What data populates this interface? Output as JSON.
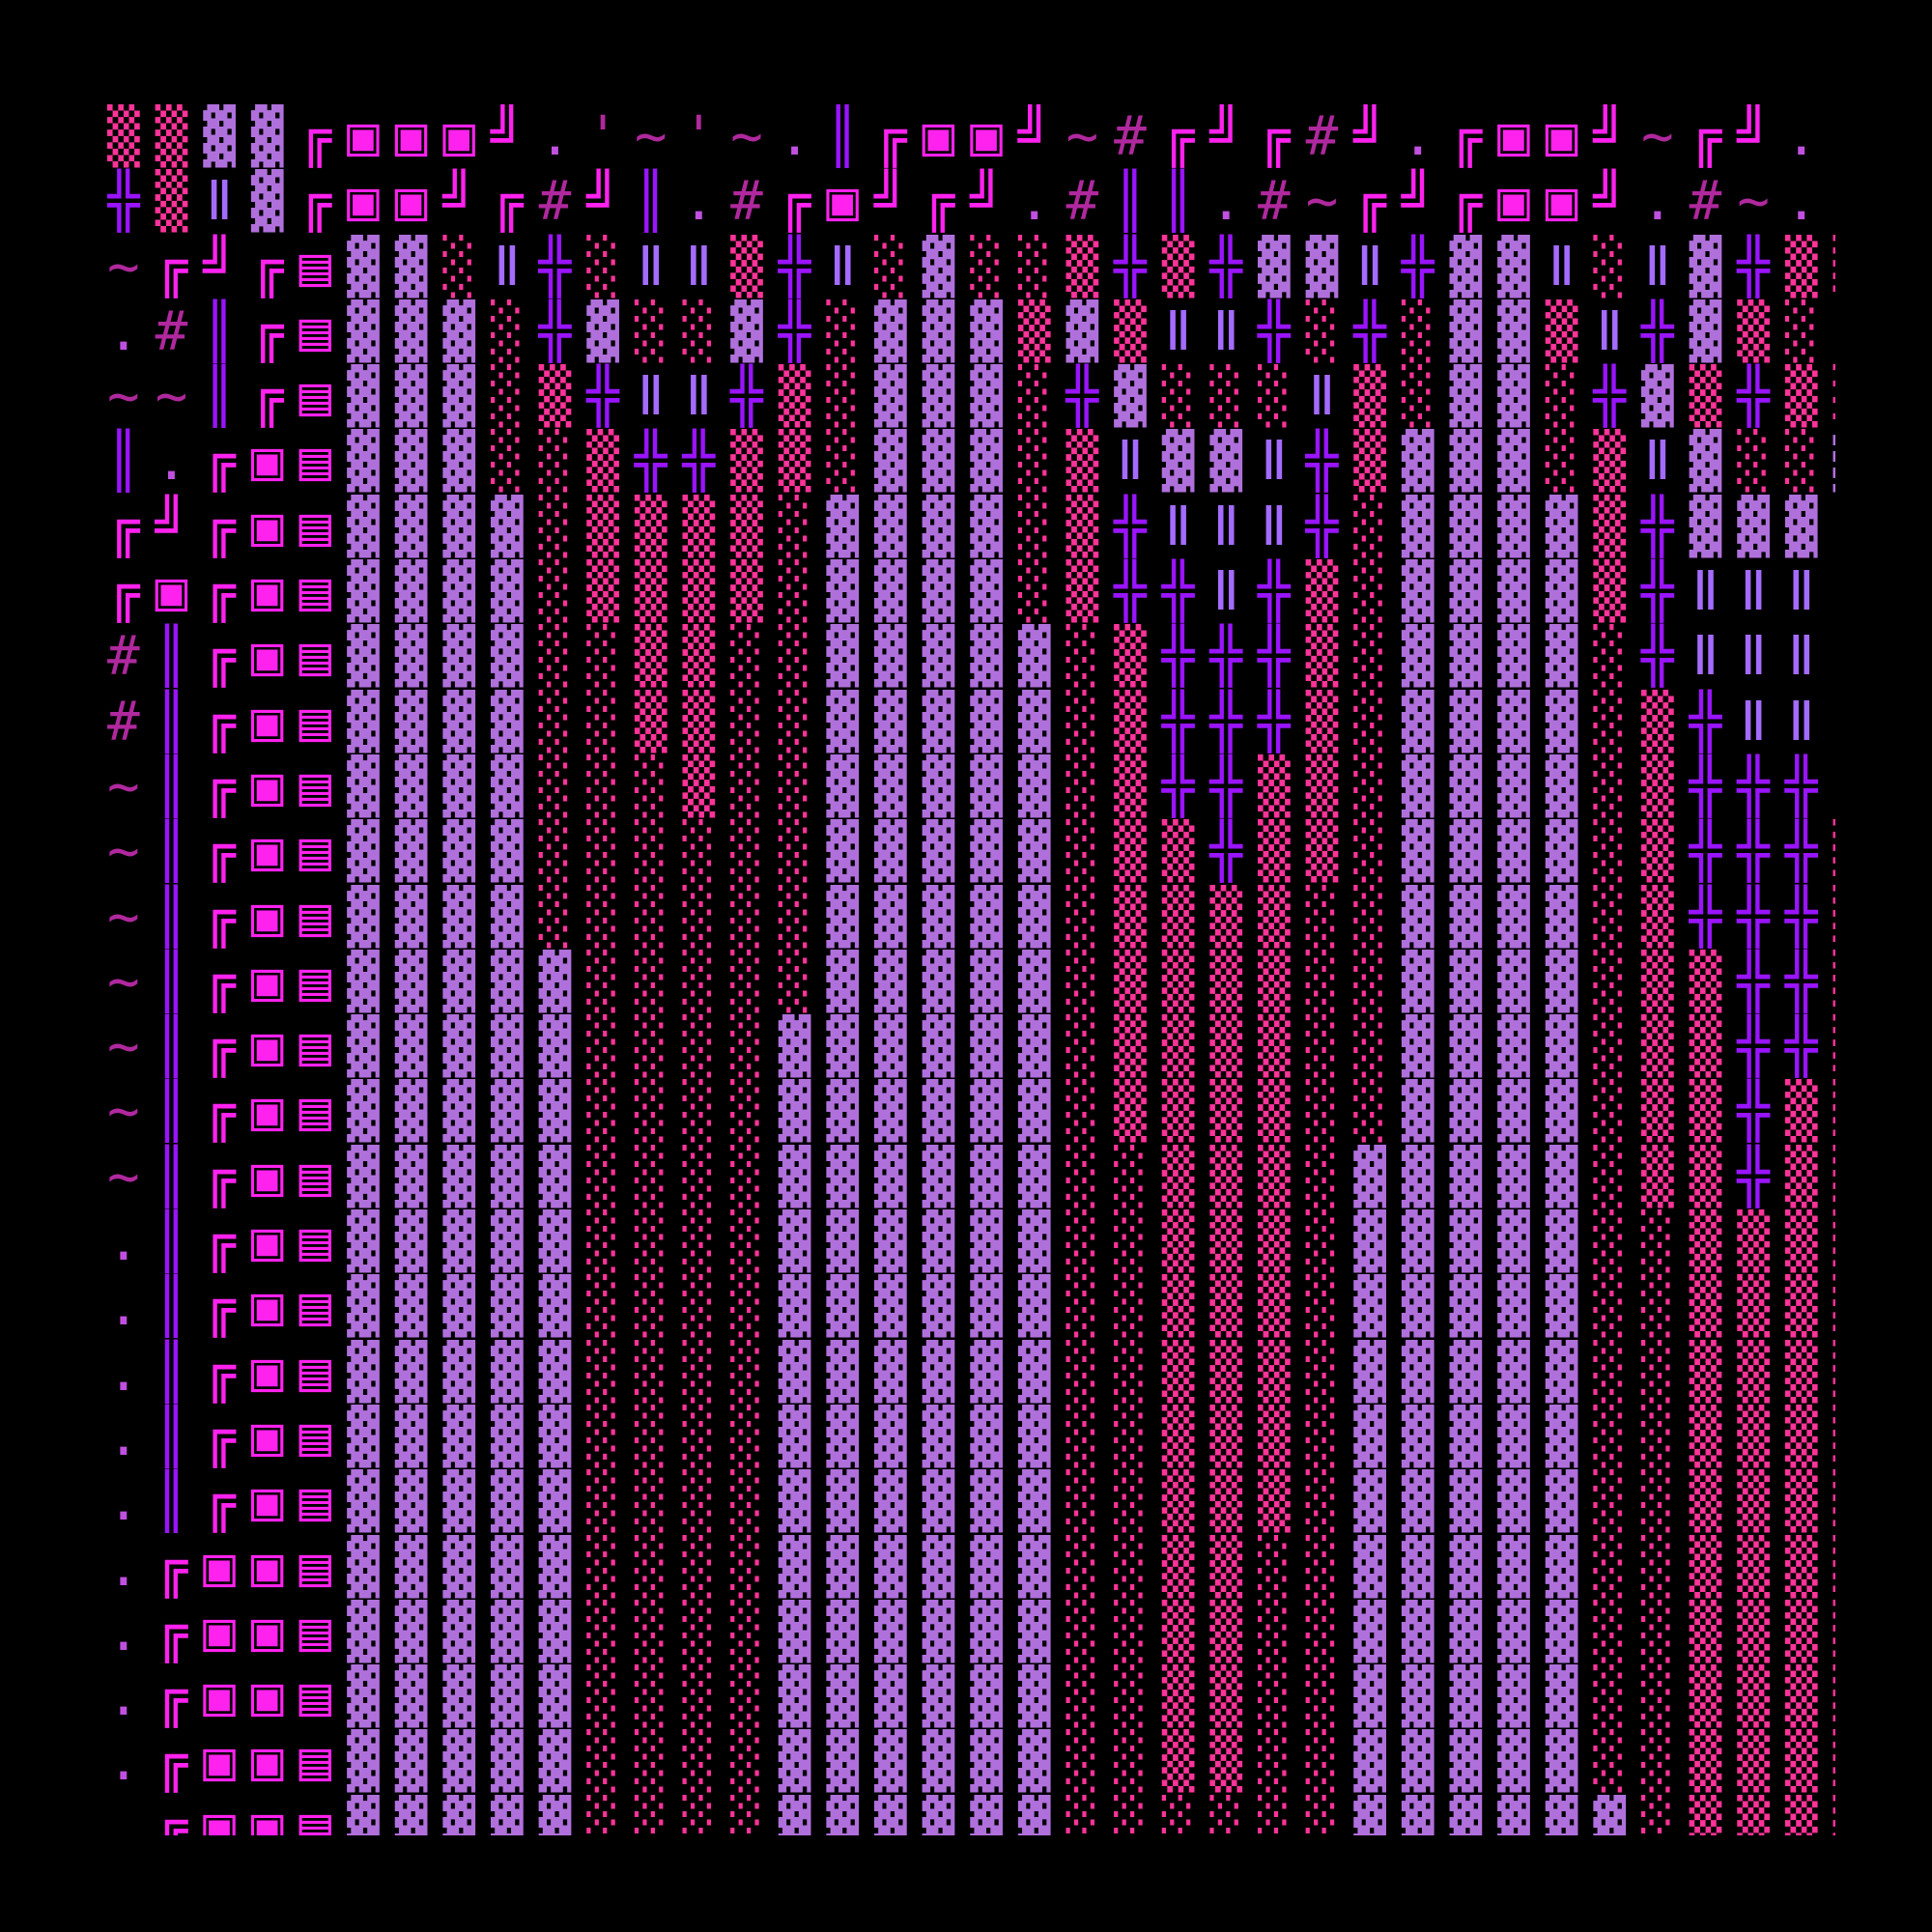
{
  "colors": {
    "background": "#000000",
    "box_magenta": "#ff22ee",
    "cross_purple": "#9a14ff",
    "block_lavender": "#b070dc",
    "shade_pink": "#ff3399",
    "bar_lavender": "#a46bff",
    "punctuation": "#b0289e"
  },
  "glyph_legend": {
    "▣": "double-line corner ╔ overlapped with ╝",
    "▤": "dark shade ▓ overlapped with ╝",
    "ǁ": "wide lavender double bar"
  },
  "art_rows": [
    "▒▒▓▓╔▣▣▣╝.'~'~.║╔▣▣╝~#╔╝╔#╝.╔▣▣╝~╔╝.|",
    "╬▒ǁ▓╔▣▣╝╔#╝║.#╔▣╝╔╝.#║║.#~╔╝╔▣▣╝.#~. ",
    "~╔╝╔▤▓▓░ǁ╬░ǁǁ▒╬ǁ░▓░░▒╬▒╬▓▓ǁ╬▓▓ǁ░ǁ▓╬▒▒",
    ".#║╔▤▓▓▓░╬▓░░▓╬░▓▓▓▒▓▒ǁǁ╬░╬░▓▓▒ǁ╬▓▒░ǁ",
    "~~║╔▤▓▓▓░▒╬ǁǁ╬▒░▓▓▓░╬▓░░░ǁ▒░▓▓░╬▓▒╬▒░",
    "║.╔▣▤▓▓▓░░▒╬╬▒▒░▓▓▓░▒ǁ▓▓ǁ╬▒▓▓▓░▒ǁ▓░░▓",
    "╔╝╔▣▤▓▓▓▓░▒▒▒▒░▓▓▓▓░▒╬ǁǁǁ╬░▓▓▓▓▒╬▓▓▓ǁ",
    "╔▣╔▣▤▓▓▓▓░▒▒▒▒░▓▓▓▓░▒╬╬ǁ╬▒░▓▓▓▓▒╬ǁǁǁ:",
    "#║╔▣▤▓▓▓▓░░▒▒░░▓▓▓▓▓░▒╬╬╬▒░▓▓▓▓░╬ǁǁǁ:",
    "#║╔▣▤▓▓▓▓░░▒▒░░▓▓▓▓▓░▒╬╬╬▒░▓▓▓▓░▒╬ǁǁ:",
    "~║╔▣▤▓▓▓▓░░░▒░░▓▓▓▓▓░▒╬╬▒▒░▓▓▓▓░▒╬╬╬:",
    "~║╔▣▤▓▓▓▓░░░░░░▓▓▓▓▓░▒▒╬▒▒░▓▓▓▓░▒╬╬╬▒",
    "~║╔▣▤▓▓▓▓░░░░░░▓▓▓▓▓░▒▒▒▒░░▓▓▓▓░▒╬╬╬▒",
    "~║╔▣▤▓▓▓▓▓░░░░░▓▓▓▓▓░▒▒▒▒░░▓▓▓▓░▒▒╬╬▒",
    "~║╔▣▤▓▓▓▓▓░░░░▓▓▓▓▓▓░▒▒▒▒░░▓▓▓▓░▒▒╬╬▒",
    "~║╔▣▤▓▓▓▓▓░░░░▓▓▓▓▓▓░▒▒▒▒░░▓▓▓▓░▒▒╬▒▒",
    "~║╔▣▤▓▓▓▓▓░░░░▓▓▓▓▓▓░░▒▒▒░▓▓▓▓▓░▒▒╬▒▒",
    ".║╔▣▤▓▓▓▓▓░░░░▓▓▓▓▓▓░░▒▒▒░▓▓▓▓▓░░▒▒▒▒",
    ".║╔▣▤▓▓▓▓▓░░░░▓▓▓▓▓▓░░▒▒▒░▓▓▓▓▓░░▒▒▒▒",
    ".║╔▣▤▓▓▓▓▓░░░░▓▓▓▓▓▓░░▒▒▒░▓▓▓▓▓░░▒▒▒▒",
    ".║╔▣▤▓▓▓▓▓░░░░▓▓▓▓▓▓░░▒▒▒░▓▓▓▓▓░░▒▒▒▒",
    ".║╔▣▤▓▓▓▓▓░░░░▓▓▓▓▓▓░░▒▒▒░▓▓▓▓▓░░▒▒▒▒",
    ".╔▣▣▤▓▓▓▓▓░░░░▓▓▓▓▓▓░░▒▒░░▓▓▓▓▓░░▒▒▒▒",
    ".╔▣▣▤▓▓▓▓▓░░░░▓▓▓▓▓▓░░▒▒░░▓▓▓▓▓░░▒▒▒▒",
    ".╔▣▣▤▓▓▓▓▓░░░░▓▓▓▓▓▓░░▒▒░░▓▓▓▓▓░░▒▒▒▒",
    ".╔▣▣▤▓▓▓▓▓░░░░▓▓▓▓▓▓░░▒▒░░▓▓▓▓▓░░▒▒▒▒",
    " ╔▣▣▤▓▓▓▓▓░░░░▓▓▓▓▓▓░░░░░░▓▓▓▓▓▓░▒▒▒▒"
  ]
}
